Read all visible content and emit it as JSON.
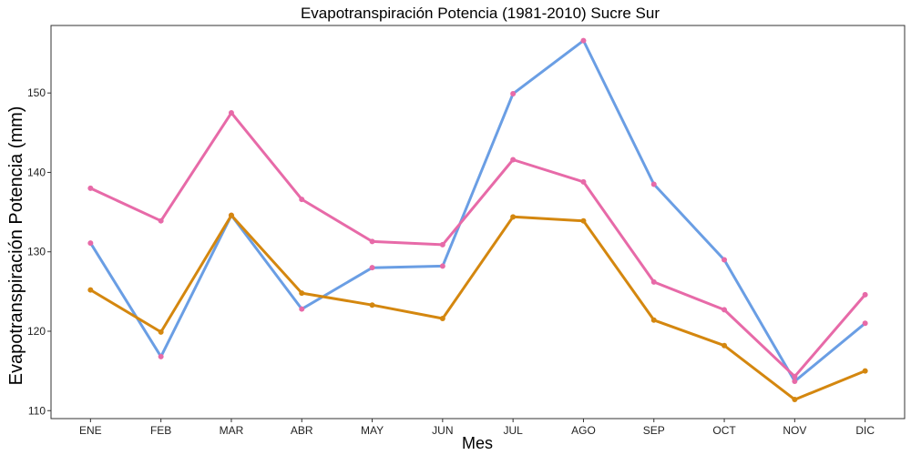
{
  "chart_data": {
    "type": "line",
    "title": "Evapotranspiración Potencia (1981-2010)  Sucre Sur",
    "xlabel": "Mes",
    "ylabel": "Evapotranspiración Potencia  (mm)",
    "categories": [
      "ENE",
      "FEB",
      "MAR",
      "ABR",
      "MAY",
      "JUN",
      "JUL",
      "AGO",
      "SEP",
      "OCT",
      "NOV",
      "DIC"
    ],
    "ylim": [
      109,
      158.5
    ],
    "yticks": [
      110,
      120,
      130,
      140,
      150
    ],
    "grid": false,
    "legend": "none",
    "series": [
      {
        "color": "#6a9ee4",
        "marker_color": "#e76aa8",
        "values": [
          131.1,
          116.8,
          134.6,
          122.8,
          128.0,
          128.2,
          149.9,
          156.6,
          138.5,
          129.0,
          113.7,
          121.0
        ]
      },
      {
        "color": "#e76aa8",
        "marker_color": "#e76aa8",
        "values": [
          138.0,
          133.9,
          147.5,
          136.6,
          131.3,
          130.9,
          141.6,
          138.8,
          126.2,
          122.7,
          114.3,
          124.6
        ]
      },
      {
        "color": "#d4870f",
        "marker_color": "#d4870f",
        "values": [
          125.2,
          119.9,
          134.6,
          124.8,
          123.3,
          121.6,
          134.4,
          133.9,
          121.4,
          118.2,
          111.4,
          115.0
        ]
      }
    ]
  }
}
